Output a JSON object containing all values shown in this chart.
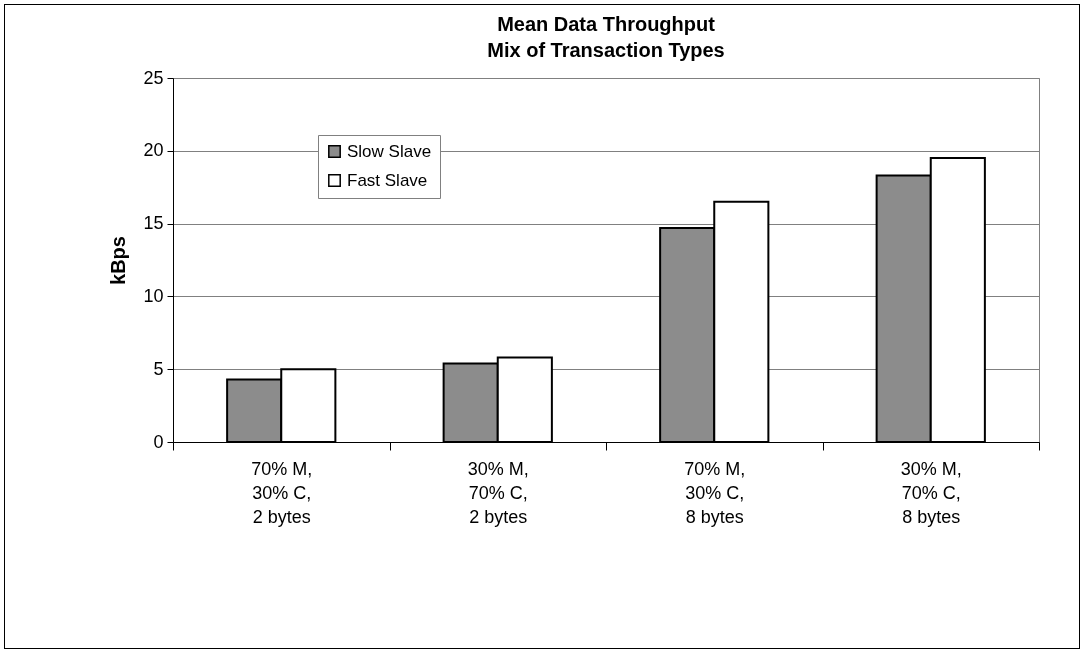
{
  "chart_data": {
    "type": "bar",
    "title": "Mean Data Throughput\nMix of Transaction Types",
    "ylabel": "kBps",
    "categories": [
      "70% M,\n30% C,\n2 bytes",
      "30% M,\n70% C,\n2 bytes",
      "70% M,\n30% C,\n8 bytes",
      "30% M,\n70% C,\n8 bytes"
    ],
    "series": [
      {
        "name": "Slow Slave",
        "color": "#8c8c8c",
        "values": [
          4.3,
          5.4,
          14.7,
          18.3
        ]
      },
      {
        "name": "Fast Slave",
        "color": "#ffffff",
        "values": [
          5.0,
          5.8,
          16.5,
          19.5
        ]
      }
    ],
    "ylim": [
      0,
      25
    ],
    "yticks": [
      0,
      5,
      10,
      15,
      20,
      25
    ],
    "grid": "y",
    "legend": "top left"
  }
}
